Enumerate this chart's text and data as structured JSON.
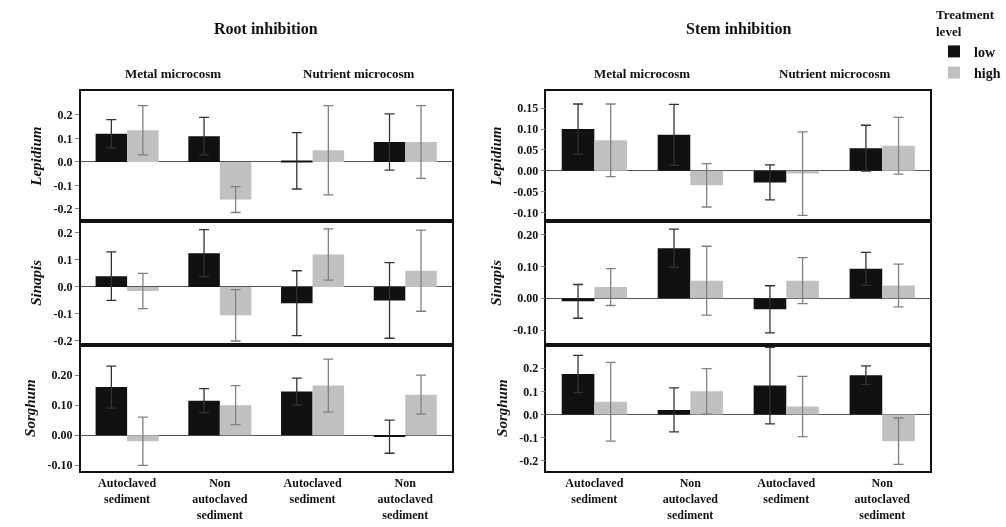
{
  "chart_data": [
    {
      "type": "bar",
      "annotations": [
        "Root inhibition",
        "Metal microcosm",
        "Nutrient microcosm"
      ],
      "ylabel": "Lepidium",
      "legend": "top right",
      "legend_title": "Treatment level",
      "categories": [
        null,
        null,
        null,
        null
      ],
      "ylim": [
        -0.25,
        0.3
      ],
      "yticks": [
        {
          "value": 0.2,
          "label": "0.2"
        },
        {
          "value": 0.1,
          "label": "0.1"
        },
        {
          "value": 0,
          "label": "0.0"
        },
        {
          "value": -0.1,
          "label": "-0.1"
        },
        {
          "value": -0.2,
          "label": "-0.2"
        }
      ],
      "tick_labels": "y",
      "series": [
        {
          "name": "low",
          "color": "#111111",
          "values": [
            0.12,
            0.11,
            0.005,
            0.085
          ],
          "errors": [
            0.06,
            0.08,
            0.12,
            0.12
          ]
        },
        {
          "name": "high",
          "color": "#c0c0c0",
          "values": [
            0.135,
            -0.16,
            0.05,
            0.085
          ],
          "errors": [
            0.105,
            0.055,
            0.19,
            0.155
          ]
        }
      ]
    },
    {
      "type": "bar",
      "annotations": [
        "Stem inhibition",
        "Metal microcosm",
        "Nutrient microcosm"
      ],
      "ylabel": "Lepidium",
      "categories": [
        null,
        null,
        null,
        null
      ],
      "ylim": [
        -0.12,
        0.19
      ],
      "yticks": [
        {
          "value": 0.15,
          "label": "0.15"
        },
        {
          "value": 0.1,
          "label": "0.10"
        },
        {
          "value": 0.05,
          "label": "0.05"
        },
        {
          "value": 0,
          "label": "0.00"
        },
        {
          "value": -0.05,
          "label": "-0.05"
        },
        {
          "value": -0.1,
          "label": "-0.10"
        }
      ],
      "tick_labels": "y",
      "series": [
        {
          "color": "#111111",
          "values": [
            0.1,
            0.086,
            -0.028,
            0.054
          ],
          "errors": [
            0.06,
            0.073,
            0.042,
            0.055
          ]
        },
        {
          "color": "#c0c0c0",
          "values": [
            0.073,
            -0.035,
            -0.007,
            0.06
          ],
          "errors": [
            0.087,
            0.052,
            0.1,
            0.068
          ]
        }
      ]
    },
    {
      "type": "bar",
      "ylabel": "Sinapis",
      "categories": [
        null,
        null,
        null,
        null
      ],
      "ylim": [
        -0.215,
        0.245
      ],
      "yticks": [
        {
          "value": 0.2,
          "label": "0.2"
        },
        {
          "value": 0.1,
          "label": "0.1"
        },
        {
          "value": 0,
          "label": "0.0"
        },
        {
          "value": -0.1,
          "label": "-0.1"
        },
        {
          "value": -0.2,
          "label": "-0.2"
        }
      ],
      "tick_labels": "y",
      "series": [
        {
          "color": "#111111",
          "values": [
            0.04,
            0.125,
            -0.06,
            -0.05
          ],
          "errors": [
            0.09,
            0.087,
            0.12,
            0.14
          ]
        },
        {
          "color": "#c0c0c0",
          "values": [
            -0.015,
            -0.105,
            0.12,
            0.06
          ],
          "errors": [
            0.065,
            0.095,
            0.095,
            0.15
          ]
        }
      ]
    },
    {
      "type": "bar",
      "ylabel": "Sinapis",
      "categories": [
        null,
        null,
        null,
        null
      ],
      "ylim": [
        -0.147,
        0.243
      ],
      "yticks": [
        {
          "value": 0.2,
          "label": "0.20"
        },
        {
          "value": 0.1,
          "label": "0.10"
        },
        {
          "value": 0,
          "label": "0.00"
        },
        {
          "value": -0.1,
          "label": "-0.10"
        }
      ],
      "tick_labels": "y",
      "series": [
        {
          "color": "#111111",
          "values": [
            -0.01,
            0.157,
            -0.035,
            0.092
          ],
          "errors": [
            0.053,
            0.06,
            0.074,
            0.052
          ]
        },
        {
          "color": "#c0c0c0",
          "values": [
            0.035,
            0.055,
            0.055,
            0.04
          ],
          "errors": [
            0.058,
            0.108,
            0.072,
            0.067
          ]
        }
      ]
    },
    {
      "type": "bar",
      "ylabel": "Sorghum",
      "categories": [
        "Autoclaved sediment",
        "Non autoclaved sediment",
        "Autoclaved sediment",
        "Non autoclaved sediment"
      ],
      "ylim": [
        -0.12,
        0.3
      ],
      "yticks": [
        {
          "value": 0.2,
          "label": "0.20"
        },
        {
          "value": 0.1,
          "label": "0.10"
        },
        {
          "value": 0,
          "label": "0.00"
        },
        {
          "value": -0.1,
          "label": "-0.10"
        }
      ],
      "series": [
        {
          "color": "#111111",
          "values": [
            0.16,
            0.115,
            0.145,
            -0.005
          ],
          "errors": [
            0.07,
            0.04,
            0.045,
            0.055
          ]
        },
        {
          "color": "#c0c0c0",
          "values": [
            -0.02,
            0.1,
            0.165,
            0.135
          ],
          "errors": [
            0.08,
            0.065,
            0.088,
            0.065
          ]
        }
      ]
    },
    {
      "type": "bar",
      "ylabel": "Sorghum",
      "categories": [
        "Autoclaved sediment",
        "Non autoclaved sediment",
        "Autoclaved sediment",
        "Non autoclaved sediment"
      ],
      "ylim": [
        -0.245,
        0.3
      ],
      "yticks": [
        {
          "value": 0.2,
          "label": "0.2"
        },
        {
          "value": 0.1,
          "label": "0.1"
        },
        {
          "value": 0,
          "label": "0.0"
        },
        {
          "value": -0.1,
          "label": "-0.1"
        },
        {
          "value": -0.2,
          "label": "-0.2"
        }
      ],
      "series": [
        {
          "color": "#111111",
          "values": [
            0.175,
            0.02,
            0.125,
            0.17
          ],
          "errors": [
            0.08,
            0.095,
            0.165,
            0.04
          ]
        },
        {
          "color": "#c0c0c0",
          "values": [
            0.055,
            0.1,
            0.035,
            -0.115
          ],
          "errors": [
            0.17,
            0.098,
            0.13,
            0.1
          ]
        }
      ]
    }
  ]
}
